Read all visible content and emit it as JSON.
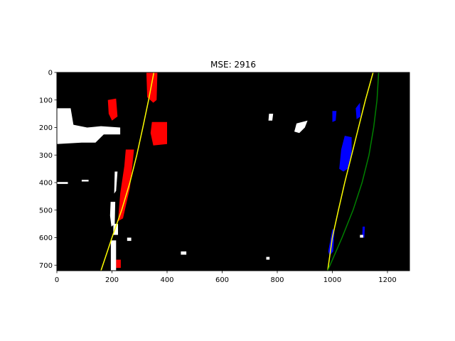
{
  "chart_data": {
    "type": "image",
    "title": "MSE: 2916",
    "xlabel": "",
    "ylabel": "",
    "xlim": [
      0,
      1280
    ],
    "ylim": [
      720,
      0
    ],
    "x_ticks": [
      0,
      200,
      400,
      600,
      800,
      1000,
      1200
    ],
    "y_ticks": [
      0,
      100,
      200,
      300,
      400,
      500,
      600,
      700
    ],
    "background_color": "#000000",
    "series": [
      {
        "color": "#ffff00",
        "points": [
          [
            160,
            720
          ],
          [
            200,
            600
          ],
          [
            235,
            500
          ],
          [
            265,
            400
          ],
          [
            290,
            300
          ],
          [
            312,
            200
          ],
          [
            333,
            100
          ],
          [
            352,
            0
          ]
        ]
      },
      {
        "color": "#ffff00",
        "points": [
          [
            983,
            720
          ],
          [
            1000,
            600
          ],
          [
            1022,
            500
          ],
          [
            1045,
            400
          ],
          [
            1070,
            300
          ],
          [
            1095,
            200
          ],
          [
            1120,
            100
          ],
          [
            1148,
            0
          ]
        ]
      },
      {
        "color": "#008000",
        "points": [
          [
            983,
            720
          ],
          [
            1035,
            600
          ],
          [
            1075,
            500
          ],
          [
            1108,
            400
          ],
          [
            1133,
            300
          ],
          [
            1150,
            200
          ],
          [
            1162,
            100
          ],
          [
            1168,
            0
          ]
        ]
      }
    ],
    "pixel_regions": [
      {
        "color": "#ff0000",
        "polygon": [
          [
            325,
            0
          ],
          [
            365,
            0
          ],
          [
            362,
            100
          ],
          [
            350,
            110
          ],
          [
            328,
            90
          ]
        ]
      },
      {
        "color": "#ff0000",
        "polygon": [
          [
            185,
            100
          ],
          [
            215,
            95
          ],
          [
            220,
            160
          ],
          [
            200,
            175
          ],
          [
            188,
            150
          ]
        ]
      },
      {
        "color": "#ff0000",
        "polygon": [
          [
            345,
            180
          ],
          [
            400,
            180
          ],
          [
            400,
            260
          ],
          [
            350,
            265
          ],
          [
            340,
            220
          ]
        ]
      },
      {
        "color": "#ff0000",
        "polygon": [
          [
            250,
            280
          ],
          [
            280,
            280
          ],
          [
            265,
            420
          ],
          [
            240,
            530
          ],
          [
            222,
            540
          ],
          [
            230,
            440
          ],
          [
            245,
            340
          ]
        ]
      },
      {
        "color": "#ff0000",
        "polygon": [
          [
            215,
            680
          ],
          [
            232,
            680
          ],
          [
            232,
            710
          ],
          [
            215,
            710
          ]
        ]
      },
      {
        "color": "#0000ff",
        "polygon": [
          [
            1045,
            230
          ],
          [
            1070,
            235
          ],
          [
            1070,
            290
          ],
          [
            1055,
            350
          ],
          [
            1040,
            360
          ],
          [
            1025,
            350
          ],
          [
            1032,
            280
          ]
        ]
      },
      {
        "color": "#0000ff",
        "polygon": [
          [
            1000,
            570
          ],
          [
            1008,
            570
          ],
          [
            1003,
            650
          ],
          [
            990,
            665
          ],
          [
            985,
            650
          ]
        ]
      },
      {
        "color": "#0000ff",
        "polygon": [
          [
            1085,
            130
          ],
          [
            1100,
            110
          ],
          [
            1102,
            160
          ],
          [
            1088,
            170
          ]
        ]
      },
      {
        "color": "#0000ff",
        "polygon": [
          [
            1000,
            140
          ],
          [
            1015,
            140
          ],
          [
            1012,
            175
          ],
          [
            1000,
            180
          ]
        ]
      },
      {
        "color": "#0000ff",
        "polygon": [
          [
            1110,
            560
          ],
          [
            1118,
            560
          ],
          [
            1116,
            600
          ],
          [
            1108,
            600
          ]
        ]
      },
      {
        "color": "#ffffff",
        "polygon": [
          [
            0,
            130
          ],
          [
            50,
            130
          ],
          [
            60,
            190
          ],
          [
            110,
            200
          ],
          [
            160,
            195
          ],
          [
            230,
            200
          ],
          [
            230,
            225
          ],
          [
            170,
            225
          ],
          [
            140,
            255
          ],
          [
            90,
            255
          ],
          [
            0,
            260
          ]
        ]
      },
      {
        "color": "#ffffff",
        "polygon": [
          [
            0,
            398
          ],
          [
            40,
            398
          ],
          [
            40,
            405
          ],
          [
            0,
            405
          ]
        ]
      },
      {
        "color": "#ffffff",
        "polygon": [
          [
            90,
            390
          ],
          [
            115,
            390
          ],
          [
            115,
            396
          ],
          [
            90,
            396
          ]
        ]
      },
      {
        "color": "#ffffff",
        "polygon": [
          [
            210,
            360
          ],
          [
            220,
            360
          ],
          [
            215,
            430
          ],
          [
            208,
            440
          ]
        ]
      },
      {
        "color": "#ffffff",
        "polygon": [
          [
            195,
            470
          ],
          [
            212,
            470
          ],
          [
            210,
            550
          ],
          [
            198,
            560
          ],
          [
            193,
            520
          ]
        ]
      },
      {
        "color": "#ffffff",
        "polygon": [
          [
            205,
            550
          ],
          [
            222,
            550
          ],
          [
            222,
            590
          ],
          [
            205,
            590
          ]
        ]
      },
      {
        "color": "#ffffff",
        "polygon": [
          [
            196,
            610
          ],
          [
            215,
            610
          ],
          [
            215,
            720
          ],
          [
            196,
            720
          ]
        ]
      },
      {
        "color": "#ffffff",
        "polygon": [
          [
            770,
            150
          ],
          [
            785,
            150
          ],
          [
            782,
            175
          ],
          [
            768,
            175
          ]
        ]
      },
      {
        "color": "#ffffff",
        "polygon": [
          [
            870,
            185
          ],
          [
            910,
            175
          ],
          [
            900,
            200
          ],
          [
            880,
            220
          ],
          [
            862,
            215
          ]
        ]
      },
      {
        "color": "#ffffff",
        "polygon": [
          [
            255,
            600
          ],
          [
            270,
            600
          ],
          [
            270,
            612
          ],
          [
            255,
            612
          ]
        ]
      },
      {
        "color": "#ffffff",
        "polygon": [
          [
            450,
            650
          ],
          [
            470,
            650
          ],
          [
            470,
            662
          ],
          [
            450,
            662
          ]
        ]
      },
      {
        "color": "#ffffff",
        "polygon": [
          [
            760,
            670
          ],
          [
            772,
            670
          ],
          [
            772,
            680
          ],
          [
            760,
            680
          ]
        ]
      },
      {
        "color": "#ffffff",
        "polygon": [
          [
            1100,
            590
          ],
          [
            1112,
            590
          ],
          [
            1112,
            600
          ],
          [
            1100,
            600
          ]
        ]
      }
    ]
  }
}
